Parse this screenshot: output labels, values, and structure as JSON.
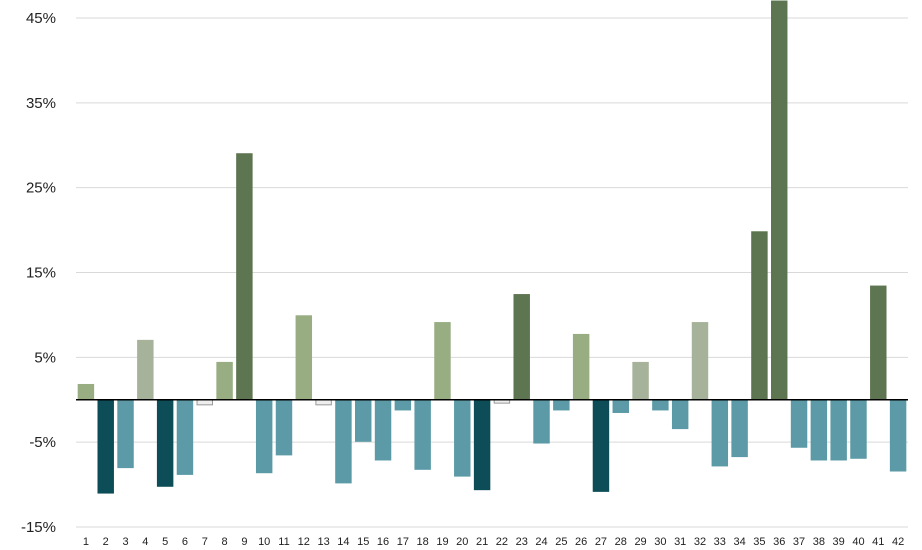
{
  "chart_data": {
    "type": "bar",
    "title": "",
    "xlabel": "",
    "ylabel": "",
    "ylim": [
      -15,
      47
    ],
    "yticks": [
      -15,
      -5,
      5,
      15,
      25,
      35,
      45
    ],
    "ytick_labels": [
      "-15%",
      "-5%",
      "5%",
      "15%",
      "25%",
      "35%",
      "45%"
    ],
    "grid": true,
    "legend": "none",
    "categories": [
      "1",
      "2",
      "3",
      "4",
      "5",
      "6",
      "7",
      "8",
      "9",
      "10",
      "11",
      "12",
      "13",
      "14",
      "15",
      "16",
      "17",
      "18",
      "19",
      "20",
      "21",
      "22",
      "23",
      "24",
      "25",
      "26",
      "27",
      "28",
      "29",
      "30",
      "31",
      "32",
      "33",
      "34",
      "35",
      "36",
      "37",
      "38",
      "39",
      "40",
      "41",
      "42"
    ],
    "values": [
      1.8,
      -11,
      -8,
      7,
      -10.2,
      -8.8,
      -0.6,
      4.4,
      29,
      -8.6,
      -6.5,
      9.9,
      -0.6,
      -9.8,
      -4.9,
      -7.1,
      -1.2,
      -8.2,
      9.1,
      -9,
      -10.6,
      -0.4,
      12.4,
      -5.1,
      -1.2,
      7.7,
      -10.8,
      -1.5,
      4.4,
      -1.2,
      -3.4,
      9.1,
      -7.8,
      -6.7,
      19.8,
      48,
      -5.6,
      -7.1,
      -7.1,
      -6.9,
      13.4,
      -8.4
    ],
    "colors": {
      "light_green": "#98ae82",
      "pale_green": "#a6b39a",
      "dark_green": "#5d7550",
      "teal": "#5b9aa6",
      "dark_teal": "#0d4d57",
      "neutral": "#eeeeee"
    },
    "bar_colors": [
      "light_green",
      "dark_teal",
      "teal",
      "pale_green",
      "dark_teal",
      "teal",
      "neutral",
      "light_green",
      "dark_green",
      "teal",
      "teal",
      "light_green",
      "neutral",
      "teal",
      "teal",
      "teal",
      "teal",
      "teal",
      "light_green",
      "teal",
      "dark_teal",
      "neutral",
      "dark_green",
      "teal",
      "teal",
      "light_green",
      "dark_teal",
      "teal",
      "pale_green",
      "teal",
      "teal",
      "pale_green",
      "teal",
      "teal",
      "dark_green",
      "dark_green",
      "teal",
      "teal",
      "teal",
      "teal",
      "dark_green",
      "teal"
    ]
  }
}
